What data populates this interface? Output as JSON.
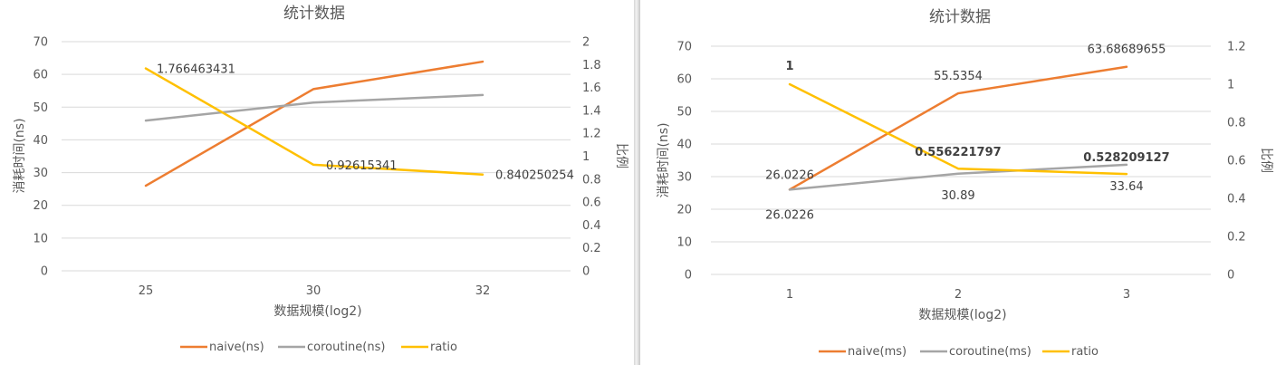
{
  "chart_data": [
    {
      "type": "line",
      "title": "统计数据",
      "xlabel": "数据规模(log2)",
      "ylabel": "消耗时间(ns)",
      "y2label": "比例",
      "categories": [
        "25",
        "30",
        "32"
      ],
      "ylim": [
        0,
        70
      ],
      "yticks": [
        "0",
        "10",
        "20",
        "30",
        "40",
        "50",
        "60",
        "70"
      ],
      "y2lim": [
        0,
        2
      ],
      "y2ticks": [
        "0",
        "0.2",
        "0.4",
        "0.6",
        "0.8",
        "1",
        "1.2",
        "1.4",
        "1.6",
        "1.8",
        "2"
      ],
      "grid": true,
      "legend_position": "bottom",
      "series": [
        {
          "name": "naive(ns)",
          "axis": "left",
          "color": "#ED7D31",
          "values": [
            26.0,
            55.5,
            63.9
          ],
          "labels": [
            "",
            "",
            ""
          ]
        },
        {
          "name": "coroutine(ns)",
          "axis": "left",
          "color": "#A5A5A5",
          "values": [
            45.9,
            51.4,
            53.7
          ],
          "labels": [
            "",
            "",
            ""
          ]
        },
        {
          "name": "ratio",
          "axis": "right",
          "color": "#FFC000",
          "values": [
            1.766463431,
            0.92615341,
            0.840250254
          ],
          "labels": [
            "1.766463431",
            "0.92615341",
            "0.840250254"
          ]
        }
      ]
    },
    {
      "type": "line",
      "title": "统计数据",
      "xlabel": "数据规模(log2)",
      "ylabel": "消耗时间(ns)",
      "y2label": "比例",
      "categories": [
        "1",
        "2",
        "3"
      ],
      "ylim": [
        0,
        70
      ],
      "yticks": [
        "0",
        "10",
        "20",
        "30",
        "40",
        "50",
        "60",
        "70"
      ],
      "y2lim": [
        0,
        1.2
      ],
      "y2ticks": [
        "0",
        "0.2",
        "0.4",
        "0.6",
        "0.8",
        "1",
        "1.2"
      ],
      "grid": true,
      "legend_position": "bottom",
      "series": [
        {
          "name": "naive(ms)",
          "axis": "left",
          "color": "#ED7D31",
          "values": [
            26.0226,
            55.5354,
            63.68689655
          ],
          "labels": [
            "26.0226",
            "55.5354",
            "63.68689655"
          ]
        },
        {
          "name": "coroutine(ms)",
          "axis": "left",
          "color": "#A5A5A5",
          "values": [
            26.0226,
            30.89,
            33.64
          ],
          "labels": [
            "26.0226",
            "30.89",
            "33.64"
          ]
        },
        {
          "name": "ratio",
          "axis": "right",
          "color": "#FFC000",
          "values": [
            1,
            0.556221797,
            0.528209127
          ],
          "labels": [
            "1",
            "0.556221797",
            "0.528209127"
          ]
        }
      ]
    }
  ]
}
